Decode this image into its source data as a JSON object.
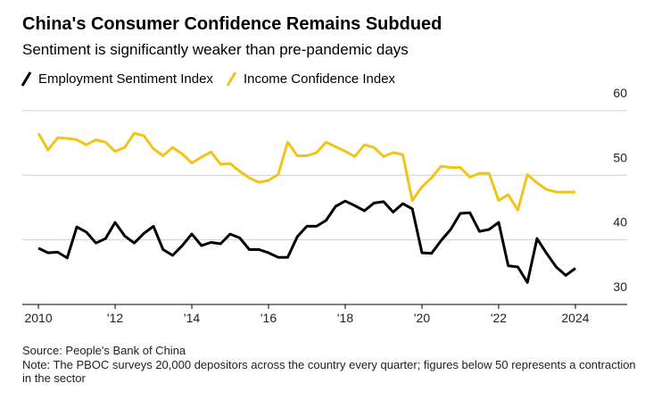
{
  "chart_data": {
    "type": "line",
    "title": "China's Consumer Confidence Remains Subdued",
    "subtitle": "Sentiment is significantly weaker than pre-pandemic days",
    "source": "Source: People's Bank of China",
    "note": "Note: The PBOC surveys 20,000 depositors across the country every quarter; figures below 50 represents a contraction in the sector",
    "x": [
      2010,
      2010.25,
      2010.5,
      2010.75,
      2011,
      2011.25,
      2011.5,
      2011.75,
      2012,
      2012.25,
      2012.5,
      2012.75,
      2013,
      2013.25,
      2013.5,
      2013.75,
      2014,
      2014.25,
      2014.5,
      2014.75,
      2015,
      2015.25,
      2015.5,
      2015.75,
      2016,
      2016.25,
      2016.5,
      2016.75,
      2017,
      2017.25,
      2017.5,
      2017.75,
      2018,
      2018.25,
      2018.5,
      2018.75,
      2019,
      2019.25,
      2019.5,
      2019.75,
      2020,
      2020.25,
      2020.5,
      2020.75,
      2021,
      2021.25,
      2021.5,
      2021.75,
      2022,
      2022.25,
      2022.5,
      2022.75,
      2023,
      2023.25,
      2023.5,
      2023.75,
      2024
    ],
    "series": [
      {
        "name": "Employment Sentiment Index",
        "color": "#000000",
        "values": [
          38.7,
          38.0,
          38.1,
          37.2,
          42.0,
          41.2,
          39.5,
          40.2,
          42.7,
          40.6,
          39.5,
          41.0,
          42.1,
          38.5,
          37.6,
          39.1,
          40.9,
          39.1,
          39.6,
          39.4,
          40.9,
          40.3,
          38.5,
          38.5,
          38.0,
          37.3,
          37.3,
          40.5,
          42.1,
          42.1,
          43.0,
          45.2,
          46.0,
          45.3,
          44.5,
          45.7,
          45.9,
          44.3,
          45.6,
          44.8,
          38.0,
          37.9,
          39.9,
          41.6,
          44.1,
          44.2,
          41.3,
          41.6,
          42.7,
          36.0,
          35.8,
          33.4,
          40.2,
          37.9,
          35.8,
          34.5,
          35.6
        ]
      },
      {
        "name": "Income Confidence Index",
        "color": "#f2c318",
        "values": [
          56.5,
          53.9,
          55.8,
          55.7,
          55.5,
          54.7,
          55.5,
          55.1,
          53.7,
          54.3,
          56.5,
          56.1,
          54.1,
          53.0,
          54.3,
          53.3,
          51.9,
          52.8,
          53.6,
          51.7,
          51.8,
          50.6,
          49.6,
          48.9,
          49.2,
          50.1,
          55.1,
          53.0,
          53.0,
          53.5,
          55.1,
          54.4,
          53.7,
          52.9,
          54.7,
          54.3,
          52.9,
          53.5,
          53.2,
          46.1,
          48.2,
          49.6,
          51.4,
          51.2,
          51.2,
          49.7,
          50.3,
          50.3,
          46.1,
          47.0,
          44.6,
          50.1,
          48.8,
          47.8,
          47.4,
          47.4,
          47.4
        ]
      }
    ],
    "xlim": [
      2009.58,
      2025.35
    ],
    "xticks": [
      {
        "value": 2010,
        "label": "2010"
      },
      {
        "value": 2012,
        "label": "'12"
      },
      {
        "value": 2014,
        "label": "'14"
      },
      {
        "value": 2016,
        "label": "'16"
      },
      {
        "value": 2018,
        "label": "'18"
      },
      {
        "value": 2020,
        "label": "'20"
      },
      {
        "value": 2022,
        "label": "'22"
      },
      {
        "value": 2024,
        "label": "2024"
      }
    ],
    "ylim": [
      30,
      63.3
    ],
    "yticks": [
      30,
      40,
      50,
      60
    ],
    "grid": true
  }
}
